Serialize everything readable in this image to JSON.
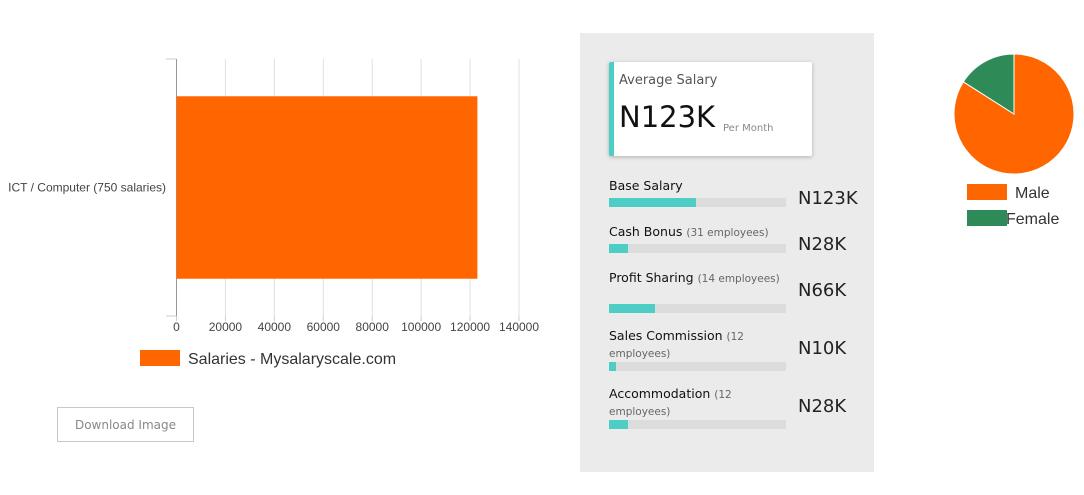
{
  "chart_data": [
    {
      "type": "bar",
      "orientation": "horizontal",
      "categories": [
        "ICT / Computer (750 salaries)"
      ],
      "series": [
        {
          "name": "Salaries - Mysalaryscale.com",
          "values": [
            123000
          ],
          "color": "#ff6600"
        }
      ],
      "xlim": [
        0,
        140000
      ],
      "xticks": [
        "0",
        "20000",
        "40000",
        "60000",
        "80000",
        "100000",
        "120000",
        "140000"
      ],
      "grid": true,
      "legend": "bottom"
    },
    {
      "type": "pie",
      "slices": [
        {
          "label": "Male",
          "value": 84,
          "color": "#ff6600"
        },
        {
          "label": "Female",
          "value": 16,
          "color": "#2e8b57"
        }
      ],
      "legend": "bottom"
    }
  ],
  "download_label": "Download Image",
  "summary": {
    "title": "Average Salary",
    "value": "N123K",
    "period": "Per Month",
    "accent": "#4ecdc4"
  },
  "components": [
    {
      "label": "Base Salary",
      "count": "",
      "value": "N123K",
      "fill": 0.49
    },
    {
      "label": "Cash Bonus",
      "count": "(31 employees)",
      "value": "N28K",
      "fill": 0.11
    },
    {
      "label": "Profit Sharing",
      "count": "(14 employees)",
      "value": "N66K",
      "fill": 0.26
    },
    {
      "label": "Sales Commission",
      "count": "(12 employees)",
      "value": "N10K",
      "fill": 0.04
    },
    {
      "label": "Accommodation",
      "count": "(12 employees)",
      "value": "N28K",
      "fill": 0.11
    }
  ]
}
